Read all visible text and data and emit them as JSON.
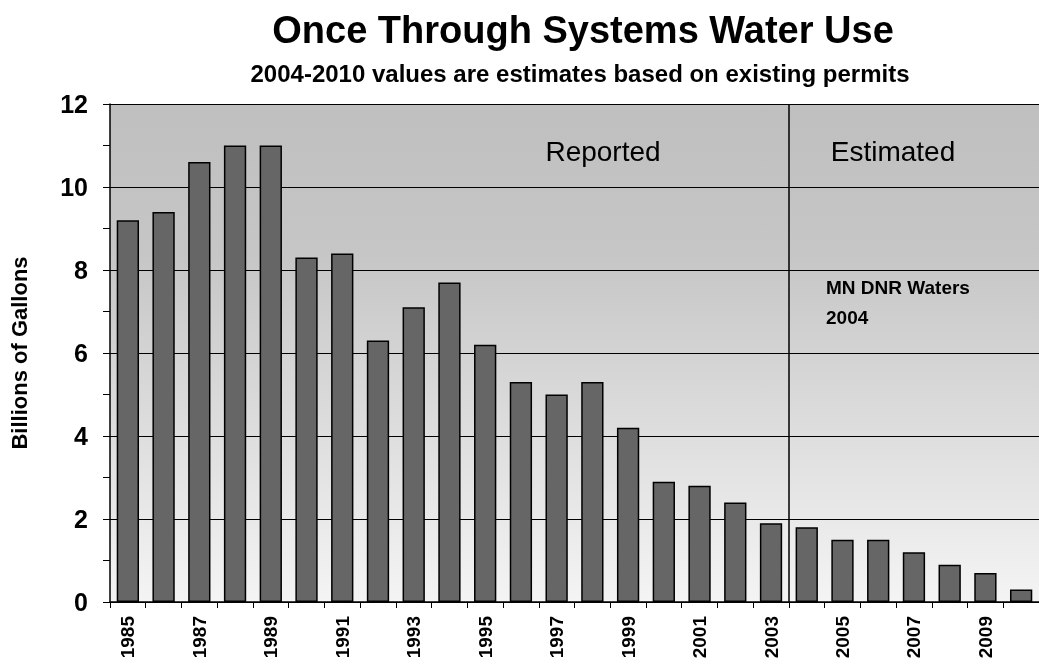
{
  "chart_data": {
    "type": "bar",
    "title": "Once Through Systems Water Use",
    "subtitle": "2004-2010 values are estimates based on existing permits",
    "ylabel": "Billions of Gallons",
    "x": [
      1985,
      1986,
      1987,
      1988,
      1989,
      1990,
      1991,
      1992,
      1993,
      1994,
      1995,
      1996,
      1997,
      1998,
      1999,
      2000,
      2001,
      2002,
      2003,
      2004,
      2005,
      2006,
      2007,
      2008,
      2009,
      2010
    ],
    "values": [
      9.2,
      9.4,
      10.6,
      11.0,
      11.0,
      8.3,
      8.4,
      6.3,
      7.1,
      7.7,
      6.2,
      5.3,
      5.0,
      5.3,
      4.2,
      2.9,
      2.8,
      2.4,
      1.9,
      1.8,
      1.5,
      1.5,
      1.2,
      0.9,
      0.7,
      0.3
    ],
    "color": "#666666",
    "xlim": [
      1984.5,
      2010.5
    ],
    "xticks": [
      {
        "value": 1984.5,
        "label": null
      },
      1985,
      {
        "value": 1985.5,
        "label": null
      },
      {
        "value": 1986.5,
        "label": null
      },
      1987,
      {
        "value": 1987.5,
        "label": null
      },
      {
        "value": 1988.5,
        "label": null
      },
      1989,
      {
        "value": 1989.5,
        "label": null
      },
      {
        "value": 1990.5,
        "label": null
      },
      1991,
      {
        "value": 1991.5,
        "label": null
      },
      {
        "value": 1992.5,
        "label": null
      },
      1993,
      {
        "value": 1993.5,
        "label": null
      },
      {
        "value": 1994.5,
        "label": null
      },
      1995,
      {
        "value": 1995.5,
        "label": null
      },
      {
        "value": 1996.5,
        "label": null
      },
      1997,
      {
        "value": 1997.5,
        "label": null
      },
      {
        "value": 1998.5,
        "label": null
      },
      1999,
      {
        "value": 1999.5,
        "label": null
      },
      {
        "value": 2000.5,
        "label": null
      },
      2001,
      {
        "value": 2001.5,
        "label": null
      },
      {
        "value": 2002.5,
        "label": null
      },
      2003,
      {
        "value": 2003.5,
        "label": null
      },
      {
        "value": 2004.5,
        "label": null
      },
      2005,
      {
        "value": 2005.5,
        "label": null
      },
      {
        "value": 2006.5,
        "label": null
      },
      2007,
      {
        "value": 2007.5,
        "label": null
      },
      {
        "value": 2008.5,
        "label": null
      },
      2009,
      {
        "value": 2009.5,
        "label": null
      },
      {
        "value": 2010.5,
        "label": null
      }
    ],
    "ylim": [
      0,
      12
    ],
    "yticks": [
      0,
      {
        "value": 1,
        "label": null
      },
      2,
      {
        "value": 3,
        "label": null
      },
      4,
      {
        "value": 5,
        "label": null
      },
      6,
      {
        "value": 7,
        "label": null
      },
      8,
      {
        "value": 9,
        "label": null
      },
      10,
      {
        "value": 11,
        "label": null
      },
      12
    ],
    "grid": "y",
    "ref_lines": [
      {
        "axis": "x",
        "value": 2003.5,
        "color": "#000000"
      }
    ],
    "annotations": [
      "Reported",
      "Estimated",
      "MN DNR Waters 2004"
    ]
  }
}
